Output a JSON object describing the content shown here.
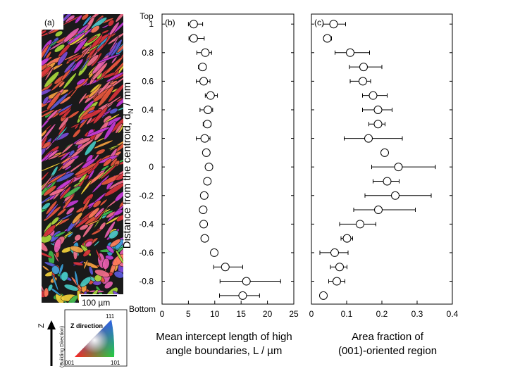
{
  "panel_a": {
    "label": "(a)",
    "scale_bar": "100 µm",
    "legend_title": "Z direction",
    "corner_001": "001",
    "corner_101": "101",
    "corner_111": "111",
    "axis_letter": "Z",
    "axis_caption": "(Building Direction)"
  },
  "y_axis": {
    "title": "Distance from the centroid, d",
    "title_sub": "N",
    "title_unit": " / mm",
    "top_label": "Top",
    "bottom_label": "Bottom"
  },
  "chart_data": [
    {
      "panel": "(b)",
      "type": "scatter",
      "xlabel_line1": "Mean intercept length of high",
      "xlabel_line2": "angle boundaries, L / µm",
      "xlim": [
        0,
        25
      ],
      "xticks": [
        "0",
        "5",
        "10",
        "15",
        "20",
        "25"
      ],
      "ylim": [
        -0.96,
        1.07
      ],
      "yticks": [
        "1",
        "0.8",
        "0.6",
        "0.4",
        "0.2",
        "0",
        "-0.2",
        "-0.4",
        "-0.6",
        "-0.8"
      ],
      "grid": false,
      "points": [
        {
          "y": 1.0,
          "x": 6.0,
          "err_lo": 1.0,
          "err_hi": 1.7
        },
        {
          "y": 0.9,
          "x": 6.0,
          "err_lo": 0.9,
          "err_hi": 2.0
        },
        {
          "y": 0.8,
          "x": 8.2,
          "err_lo": 1.6,
          "err_hi": 1.2
        },
        {
          "y": 0.7,
          "x": 7.7,
          "err_lo": 0.8,
          "err_hi": 0.6
        },
        {
          "y": 0.6,
          "x": 7.9,
          "err_lo": 1.4,
          "err_hi": 1.2
        },
        {
          "y": 0.5,
          "x": 9.2,
          "err_lo": 1.0,
          "err_hi": 1.3
        },
        {
          "y": 0.4,
          "x": 8.7,
          "err_lo": 1.5,
          "err_hi": 0.9
        },
        {
          "y": 0.3,
          "x": 8.6,
          "err_lo": 0.8,
          "err_hi": 0.7
        },
        {
          "y": 0.2,
          "x": 8.1,
          "err_lo": 1.6,
          "err_hi": 1.0
        },
        {
          "y": 0.1,
          "x": 8.4,
          "err_lo": 0.0,
          "err_hi": 0.0
        },
        {
          "y": 0.0,
          "x": 8.9,
          "err_lo": 0.0,
          "err_hi": 0.0
        },
        {
          "y": -0.1,
          "x": 8.6,
          "err_lo": 0.4,
          "err_hi": 0.3
        },
        {
          "y": -0.2,
          "x": 8.0,
          "err_lo": 0.0,
          "err_hi": 0.0
        },
        {
          "y": -0.3,
          "x": 7.8,
          "err_lo": 0.0,
          "err_hi": 0.0
        },
        {
          "y": -0.4,
          "x": 7.9,
          "err_lo": 0.5,
          "err_hi": 0.3
        },
        {
          "y": -0.5,
          "x": 8.1,
          "err_lo": 0.0,
          "err_hi": 0.0
        },
        {
          "y": -0.6,
          "x": 9.9,
          "err_lo": 0.0,
          "err_hi": 0.0
        },
        {
          "y": -0.7,
          "x": 12.0,
          "err_lo": 2.2,
          "err_hi": 3.3
        },
        {
          "y": -0.8,
          "x": 16.0,
          "err_lo": 5.0,
          "err_hi": 6.5
        },
        {
          "y": -0.9,
          "x": 15.3,
          "err_lo": 4.4,
          "err_hi": 3.2
        }
      ]
    },
    {
      "panel": "(c)",
      "type": "scatter",
      "xlabel_line1": "Area fraction of",
      "xlabel_line2": "(001)-oriented region",
      "xlim": [
        0,
        0.4
      ],
      "xticks": [
        "0",
        "0.1",
        "0.2",
        "0.3",
        "0.4"
      ],
      "ylim": [
        -0.96,
        1.07
      ],
      "grid": false,
      "points": [
        {
          "y": 1.0,
          "x": 0.063,
          "err_lo": 0.03,
          "err_hi": 0.034
        },
        {
          "y": 0.9,
          "x": 0.045,
          "err_lo": 0.01,
          "err_hi": 0.012
        },
        {
          "y": 0.8,
          "x": 0.11,
          "err_lo": 0.043,
          "err_hi": 0.055
        },
        {
          "y": 0.7,
          "x": 0.148,
          "err_lo": 0.04,
          "err_hi": 0.052
        },
        {
          "y": 0.6,
          "x": 0.146,
          "err_lo": 0.036,
          "err_hi": 0.022
        },
        {
          "y": 0.5,
          "x": 0.175,
          "err_lo": 0.03,
          "err_hi": 0.04
        },
        {
          "y": 0.4,
          "x": 0.189,
          "err_lo": 0.044,
          "err_hi": 0.04
        },
        {
          "y": 0.3,
          "x": 0.189,
          "err_lo": 0.026,
          "err_hi": 0.02
        },
        {
          "y": 0.2,
          "x": 0.162,
          "err_lo": 0.069,
          "err_hi": 0.096
        },
        {
          "y": 0.1,
          "x": 0.208,
          "err_lo": 0.01,
          "err_hi": 0.006
        },
        {
          "y": 0.0,
          "x": 0.247,
          "err_lo": 0.076,
          "err_hi": 0.105
        },
        {
          "y": -0.1,
          "x": 0.215,
          "err_lo": 0.04,
          "err_hi": 0.034
        },
        {
          "y": -0.2,
          "x": 0.238,
          "err_lo": 0.086,
          "err_hi": 0.102
        },
        {
          "y": -0.3,
          "x": 0.19,
          "err_lo": 0.07,
          "err_hi": 0.105
        },
        {
          "y": -0.4,
          "x": 0.138,
          "err_lo": 0.058,
          "err_hi": 0.045
        },
        {
          "y": -0.5,
          "x": 0.101,
          "err_lo": 0.017,
          "err_hi": 0.016
        },
        {
          "y": -0.6,
          "x": 0.066,
          "err_lo": 0.042,
          "err_hi": 0.038
        },
        {
          "y": -0.7,
          "x": 0.08,
          "err_lo": 0.026,
          "err_hi": 0.021
        },
        {
          "y": -0.8,
          "x": 0.072,
          "err_lo": 0.023,
          "err_hi": 0.023
        },
        {
          "y": -0.9,
          "x": 0.034,
          "err_lo": 0.008,
          "err_hi": 0.008
        }
      ]
    }
  ],
  "colors": {
    "marker_fill": "#ffffff",
    "marker_stroke": "#000000",
    "frame": "#000000",
    "ebsd_palette": [
      "#d8323a",
      "#e8573c",
      "#f06e8a",
      "#c43ad8",
      "#7a4bd6",
      "#3aa0d8",
      "#46c8c2",
      "#3fb84a",
      "#a8d83a",
      "#f2d23a",
      "#f4a040",
      "#e85fb0",
      "#5a5ad8",
      "#ff7a5a"
    ]
  }
}
